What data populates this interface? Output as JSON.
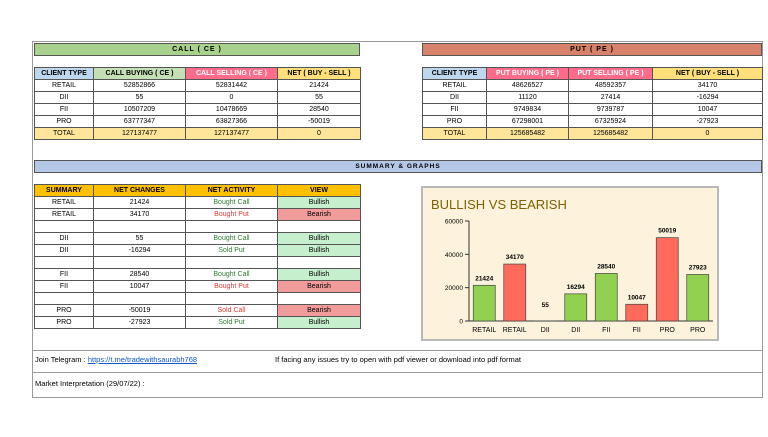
{
  "call": {
    "title": "CALL ( CE )",
    "headers": [
      "CLIENT TYPE",
      "CALL BUYING ( CE )",
      "CALL SELLING ( CE )",
      "NET ( BUY - SELL )"
    ],
    "rows": [
      [
        "RETAIL",
        "52852866",
        "52831442",
        "21424"
      ],
      [
        "DII",
        "55",
        "0",
        "55"
      ],
      [
        "FII",
        "10507209",
        "10478669",
        "28540"
      ],
      [
        "PRO",
        "63777347",
        "63827366",
        "-50019"
      ]
    ],
    "total": [
      "TOTAL",
      "127137477",
      "127137477",
      "0"
    ]
  },
  "put": {
    "title": "PUT ( PE )",
    "headers": [
      "CLIENT TYPE",
      "PUT BUYING ( PE )",
      "PUT SELLING ( PE )",
      "NET ( BUY - SELL )"
    ],
    "rows": [
      [
        "RETAIL",
        "48626527",
        "48592357",
        "34170"
      ],
      [
        "DII",
        "11120",
        "27414",
        "-16294"
      ],
      [
        "FII",
        "9749834",
        "9739787",
        "10047"
      ],
      [
        "PRO",
        "67298001",
        "67325924",
        "-27923"
      ]
    ],
    "total": [
      "TOTAL",
      "125685482",
      "125685482",
      "0"
    ]
  },
  "summary": {
    "title": "SUMMARY & GRAPHS",
    "headers": [
      "SUMMARY",
      "NET CHANGES",
      "NET ACTIVITY",
      "VIEW"
    ],
    "groups": [
      [
        [
          "RETAIL",
          "21424",
          "Bought Call",
          "Bullish"
        ],
        [
          "RETAIL",
          "34170",
          "Bought Put",
          "Bearish"
        ]
      ],
      [
        [
          "DII",
          "55",
          "Bought Call",
          "Bullish"
        ],
        [
          "DII",
          "-16294",
          "Sold Put",
          "Bullish"
        ]
      ],
      [
        [
          "FII",
          "28540",
          "Bought Call",
          "Bullish"
        ],
        [
          "FII",
          "10047",
          "Bought Put",
          "Bearish"
        ]
      ],
      [
        [
          "PRO",
          "-50019",
          "Sold Call",
          "Bearish"
        ],
        [
          "PRO",
          "-27923",
          "Sold Put",
          "Bullish"
        ]
      ]
    ]
  },
  "colors": {
    "bullish_bar": "#92d050",
    "bearish_bar": "#ff6b5b",
    "chart_bg": "#fdf3dc",
    "chart_title": "#7f6000"
  },
  "chart_data": {
    "type": "bar",
    "title": "BULLISH VS BEARISH",
    "categories": [
      "RETAIL",
      "RETAIL",
      "DII",
      "DII",
      "FII",
      "FII",
      "PRO",
      "PRO"
    ],
    "values": [
      21424,
      34170,
      55,
      16294,
      28540,
      10047,
      50019,
      27923
    ],
    "labels": [
      "21424",
      "34170",
      "55",
      "16294",
      "28540",
      "10047",
      "50019",
      "27923"
    ],
    "bar_view": [
      "bullish",
      "bearish",
      "bullish",
      "bullish",
      "bullish",
      "bearish",
      "bearish",
      "bullish"
    ],
    "yticks": [
      "0",
      "20000",
      "40000",
      "60000"
    ],
    "ylim": [
      0,
      60000
    ],
    "grid": false,
    "xlabel": "",
    "ylabel": ""
  },
  "footer": {
    "telegram_label": "Join Telegram :",
    "telegram_link": "https://t.me/tradewithsaurabh768",
    "notice": "If facing any issues try to open with pdf viewer or download into pdf format",
    "interpretation": "Market Interpretation (29/07/22) :"
  }
}
